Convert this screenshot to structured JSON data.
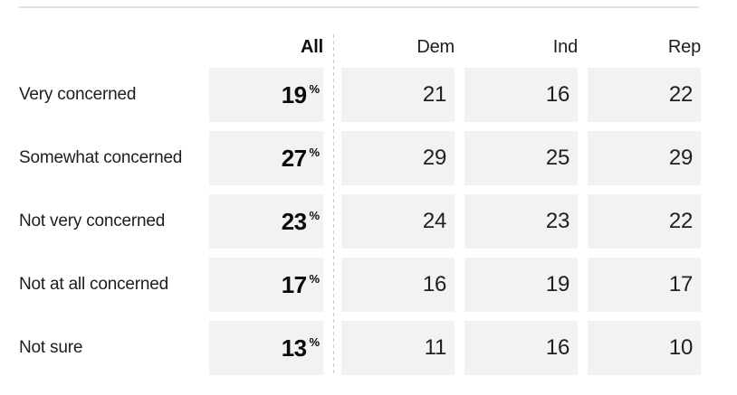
{
  "colors": {
    "cell_background": "#f2f2f3",
    "top_rule": "#dedede",
    "dashed_divider": "#c9c9cc",
    "text": "#1a1a1a"
  },
  "table": {
    "unit": "%",
    "columns": [
      {
        "id": "all",
        "label": "All"
      },
      {
        "id": "dem",
        "label": "Dem"
      },
      {
        "id": "ind",
        "label": "Ind"
      },
      {
        "id": "rep",
        "label": "Rep"
      }
    ],
    "rows": [
      {
        "label": "Very concerned",
        "all": "19",
        "dem": "21",
        "ind": "16",
        "rep": "22"
      },
      {
        "label": "Somewhat concerned",
        "all": "27",
        "dem": "29",
        "ind": "25",
        "rep": "29"
      },
      {
        "label": "Not very concerned",
        "all": "23",
        "dem": "24",
        "ind": "23",
        "rep": "22"
      },
      {
        "label": "Not at all concerned",
        "all": "17",
        "dem": "16",
        "ind": "19",
        "rep": "17"
      },
      {
        "label": "Not sure",
        "all": "13",
        "dem": "11",
        "ind": "16",
        "rep": "10"
      }
    ]
  },
  "chart_data": {
    "type": "table",
    "categories": [
      "Very concerned",
      "Somewhat concerned",
      "Not very concerned",
      "Not at all concerned",
      "Not sure"
    ],
    "series": [
      {
        "name": "All",
        "values": [
          19,
          27,
          23,
          17,
          13
        ]
      },
      {
        "name": "Dem",
        "values": [
          21,
          29,
          24,
          16,
          11
        ]
      },
      {
        "name": "Ind",
        "values": [
          16,
          25,
          23,
          19,
          16
        ]
      },
      {
        "name": "Rep",
        "values": [
          22,
          29,
          22,
          17,
          10
        ]
      }
    ],
    "unit": "%",
    "layout": "responses as rows, respondent groups as columns; All column emphasized bold with % sign; dashed divider between All and party columns"
  }
}
